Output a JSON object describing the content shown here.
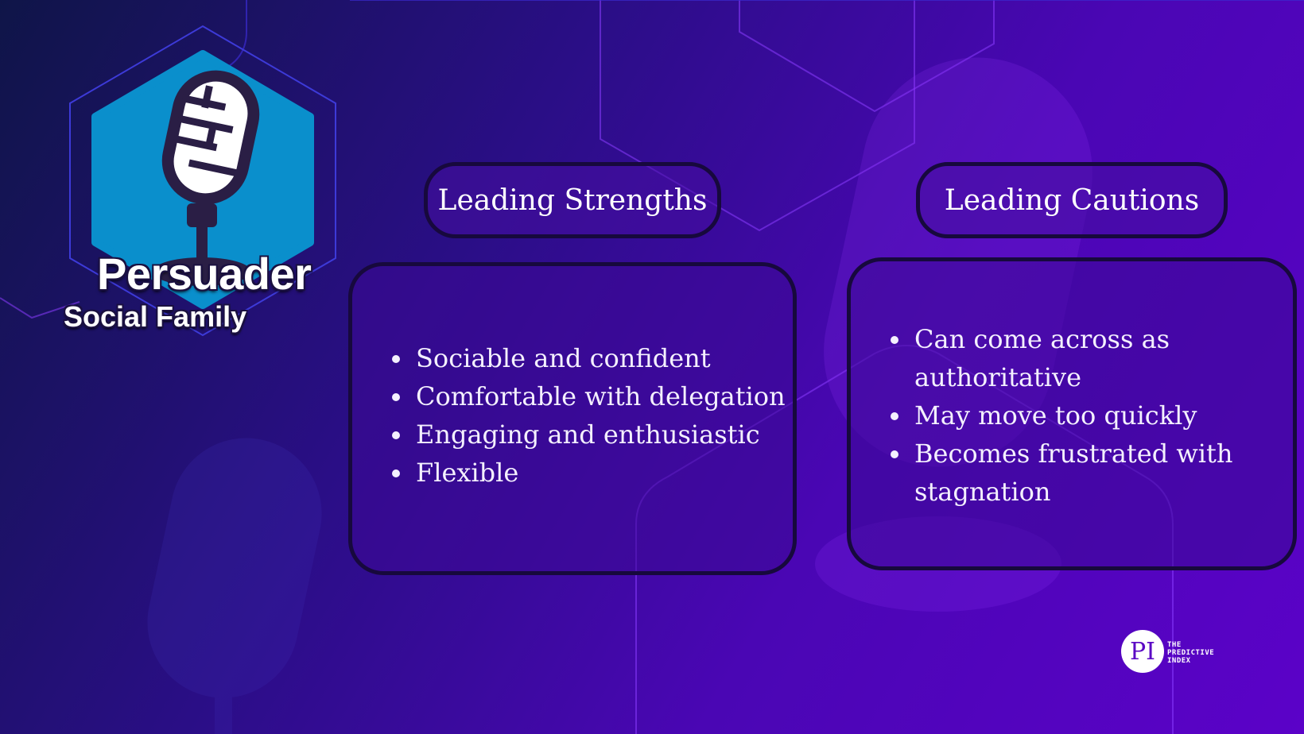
{
  "header": {
    "title": "Persuader",
    "subtitle": "Social Family"
  },
  "strengths": {
    "label": "Leading Strengths",
    "items": [
      "Sociable and confident",
      "Comfortable with delegation",
      "Engaging and enthusiastic",
      "Flexible"
    ]
  },
  "cautions": {
    "label": "Leading Cautions",
    "items": [
      "Can come across as authoritative",
      "May move too quickly",
      "Becomes frustrated with stagnation"
    ]
  },
  "logo": {
    "mark": "PI",
    "line1": "THE",
    "line2": "PREDICTIVE",
    "line3": "INDEX"
  },
  "colors": {
    "badge_fill": "#0a8fcc",
    "mic_dark": "#2a1e45",
    "background_start": "#0f1548",
    "background_end": "#5b02c8"
  },
  "icons": {
    "badge": "microphone-icon",
    "background": "microphone-watermark-icon"
  }
}
